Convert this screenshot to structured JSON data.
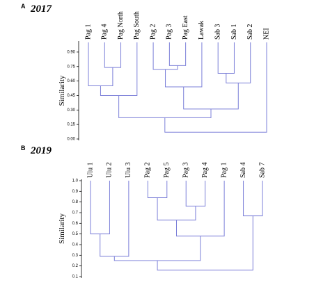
{
  "chart_data": [
    {
      "type": "dendrogram",
      "panel": "A",
      "title": "2017",
      "y_label": "Similarity",
      "color": "#7b7fd8",
      "leaves": [
        "Pag 1",
        "Pag 4",
        "Pag North",
        "Pag South",
        "Pag 2",
        "Pag 3",
        "Pag East",
        "Lawak",
        "Sab 3",
        "Sab 1",
        "Sab 2",
        "NEI"
      ],
      "merges": [
        {
          "a": 1,
          "b": 2,
          "height": 0.74
        },
        {
          "a": 5,
          "b": 6,
          "height": 0.76
        },
        {
          "a": 4,
          "b": 13,
          "height": 0.72
        },
        {
          "a": 8,
          "b": 9,
          "height": 0.68
        },
        {
          "a": 15,
          "b": 10,
          "height": 0.58
        },
        {
          "a": 0,
          "b": 12,
          "height": 0.55
        },
        {
          "a": 14,
          "b": 7,
          "height": 0.54
        },
        {
          "a": 17,
          "b": 3,
          "height": 0.45
        },
        {
          "a": 18,
          "b": 16,
          "height": 0.31
        },
        {
          "a": 19,
          "b": 20,
          "height": 0.22
        },
        {
          "a": 21,
          "b": 11,
          "height": 0.07
        }
      ],
      "ylim": [
        0,
        1.0
      ],
      "yticks": [
        {
          "value": 0,
          "label": "0.00"
        },
        {
          "value": 0.15,
          "label": "0.15"
        },
        {
          "value": 0.3,
          "label": "0.30"
        },
        {
          "value": 0.45,
          "label": "0.45"
        },
        {
          "value": 0.6,
          "label": "0.60"
        },
        {
          "value": 0.75,
          "label": "0.75"
        },
        {
          "value": 0.9,
          "label": "0.90"
        }
      ]
    },
    {
      "type": "dendrogram",
      "panel": "B",
      "title": "2019",
      "y_label": "Similarity",
      "color": "#7b7fd8",
      "leaves": [
        "Ulu 1",
        "Ulu 2",
        "Ulu 3",
        "Pag 2",
        "Pag 5",
        "Pag 3",
        "Pag 4",
        "Pag 1",
        "Sab 4",
        "Sab 7"
      ],
      "merges": [
        {
          "a": 0,
          "b": 1,
          "height": 0.5
        },
        {
          "a": 3,
          "b": 4,
          "height": 0.84
        },
        {
          "a": 5,
          "b": 6,
          "height": 0.76
        },
        {
          "a": 11,
          "b": 12,
          "height": 0.63
        },
        {
          "a": 8,
          "b": 9,
          "height": 0.67
        },
        {
          "a": 13,
          "b": 7,
          "height": 0.48
        },
        {
          "a": 10,
          "b": 2,
          "height": 0.29
        },
        {
          "a": 16,
          "b": 15,
          "height": 0.25
        },
        {
          "a": 17,
          "b": 14,
          "height": 0.16
        }
      ],
      "ylim": [
        0.1,
        1.0
      ],
      "yticks": [
        0.1,
        0.2,
        0.3,
        0.4,
        0.5,
        0.6,
        0.7,
        0.8,
        0.9,
        {
          "value": 1.0,
          "label": "1.0"
        }
      ]
    }
  ]
}
